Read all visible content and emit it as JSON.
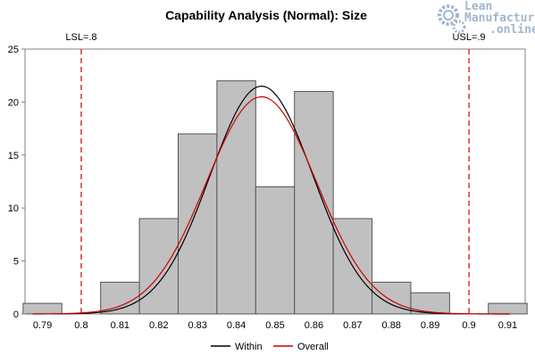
{
  "watermark": {
    "line1": "Lean",
    "line2": "Manufacturing",
    "line3": ".online",
    "icon": "gear-icon",
    "color": "#9fb6cf"
  },
  "chart_data": {
    "type": "bar",
    "title": "Capability Analysis  (Normal):  Size",
    "xlabel": "",
    "ylabel": "",
    "x_ticks": [
      "0.79",
      "0.8",
      "0.81",
      "0.82",
      "0.83",
      "0.84",
      "0.85",
      "0.86",
      "0.87",
      "0.88",
      "0.89",
      "0.9",
      "0.91"
    ],
    "xlim": [
      0.7855,
      0.9145
    ],
    "ylim": [
      0,
      25
    ],
    "y_ticks": [
      0,
      5,
      10,
      15,
      20,
      25
    ],
    "histogram": {
      "bin_width": 0.01,
      "centers": [
        0.79,
        0.8,
        0.81,
        0.82,
        0.83,
        0.84,
        0.85,
        0.86,
        0.87,
        0.88,
        0.89,
        0.9,
        0.91
      ],
      "counts": [
        1,
        0,
        3,
        9,
        17,
        22,
        12,
        21,
        9,
        3,
        2,
        0,
        1
      ],
      "fill": "#c0c0c0",
      "stroke": "#555555"
    },
    "spec_limits": [
      {
        "label": "LSL=.8",
        "value": 0.8,
        "color": "#e03030"
      },
      {
        "label": "USL=.9",
        "value": 0.9,
        "color": "#e03030"
      }
    ],
    "series": [
      {
        "name": "Within",
        "color": "#000000",
        "mean": 0.8465,
        "sd": 0.0133,
        "peak": 21.5,
        "x_range": [
          0.7875,
          0.9105
        ]
      },
      {
        "name": "Overall",
        "color": "#cc0000",
        "mean": 0.8465,
        "sd": 0.0142,
        "peak": 20.5,
        "x_range": [
          0.7875,
          0.9105
        ]
      }
    ],
    "legend_position": "bottom",
    "grid": false
  }
}
